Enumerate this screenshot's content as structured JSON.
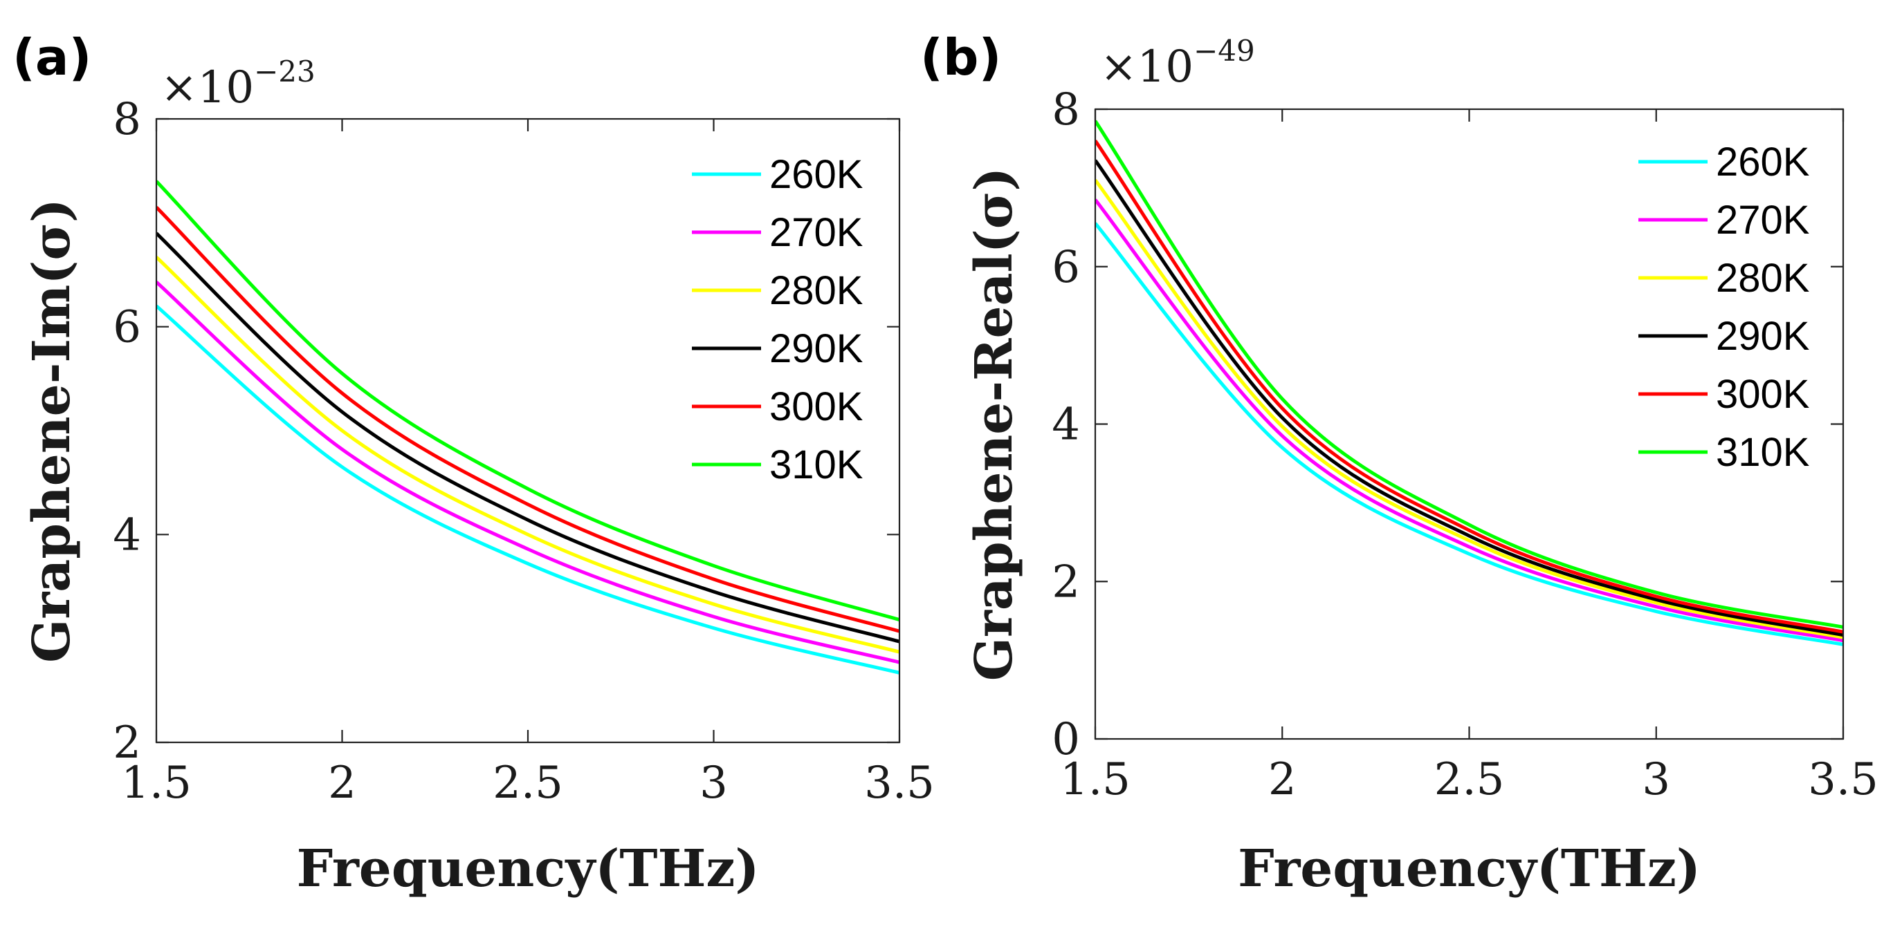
{
  "chart_data": [
    {
      "type": "line",
      "panel_label": "(a)",
      "xlabel": "Frequency(THz)",
      "ylabel": "Graphene-Im(σ)",
      "exponent_base": "×10",
      "exponent_power": "−23",
      "xlim": [
        1.5,
        3.5
      ],
      "ylim": [
        2,
        8
      ],
      "xticks": [
        1.5,
        2,
        2.5,
        3,
        3.5
      ],
      "xtick_labels": [
        "1.5",
        "2",
        "2.5",
        "3",
        "3.5"
      ],
      "yticks": [
        2,
        4,
        6,
        8
      ],
      "ytick_labels": [
        "2",
        "4",
        "6",
        "8"
      ],
      "legend_position": "top-right",
      "x": [
        1.5,
        2.0,
        2.5,
        3.0,
        3.5
      ],
      "series": [
        {
          "name": "260K",
          "color": "#00FFFF",
          "values": [
            6.2,
            4.65,
            3.72,
            3.1,
            2.67
          ]
        },
        {
          "name": "270K",
          "color": "#FF00FF",
          "values": [
            6.43,
            4.82,
            3.86,
            3.21,
            2.77
          ]
        },
        {
          "name": "280K",
          "color": "#FFFF00",
          "values": [
            6.67,
            5.0,
            4.0,
            3.33,
            2.87
          ]
        },
        {
          "name": "290K",
          "color": "#000000",
          "values": [
            6.9,
            5.18,
            4.14,
            3.45,
            2.97
          ]
        },
        {
          "name": "300K",
          "color": "#FF0000",
          "values": [
            7.15,
            5.36,
            4.29,
            3.57,
            3.07
          ]
        },
        {
          "name": "310K",
          "color": "#00FF00",
          "values": [
            7.4,
            5.55,
            4.44,
            3.7,
            3.18
          ]
        }
      ]
    },
    {
      "type": "line",
      "panel_label": "(b)",
      "xlabel": "Frequency(THz)",
      "ylabel": "Graphene-Real(σ)",
      "exponent_base": "×10",
      "exponent_power": "−49",
      "xlim": [
        1.5,
        3.5
      ],
      "ylim": [
        0,
        8
      ],
      "xticks": [
        1.5,
        2,
        2.5,
        3,
        3.5
      ],
      "xtick_labels": [
        "1.5",
        "2",
        "2.5",
        "3",
        "3.5"
      ],
      "yticks": [
        0,
        2,
        4,
        6,
        8
      ],
      "ytick_labels": [
        "0",
        "2",
        "4",
        "6",
        "8"
      ],
      "legend_position": "top-right",
      "x": [
        1.5,
        2.0,
        2.5,
        3.0,
        3.5
      ],
      "series": [
        {
          "name": "260K",
          "color": "#00FFFF",
          "values": [
            6.55,
            3.7,
            2.35,
            1.62,
            1.2
          ]
        },
        {
          "name": "270K",
          "color": "#FF00FF",
          "values": [
            6.85,
            3.85,
            2.44,
            1.68,
            1.25
          ]
        },
        {
          "name": "280K",
          "color": "#FFFF00",
          "values": [
            7.1,
            3.97,
            2.52,
            1.73,
            1.29
          ]
        },
        {
          "name": "290K",
          "color": "#000000",
          "values": [
            7.35,
            4.08,
            2.58,
            1.77,
            1.32
          ]
        },
        {
          "name": "300K",
          "color": "#FF0000",
          "values": [
            7.6,
            4.2,
            2.65,
            1.81,
            1.36
          ]
        },
        {
          "name": "310K",
          "color": "#00FF00",
          "values": [
            7.85,
            4.32,
            2.72,
            1.86,
            1.42
          ]
        }
      ]
    }
  ]
}
